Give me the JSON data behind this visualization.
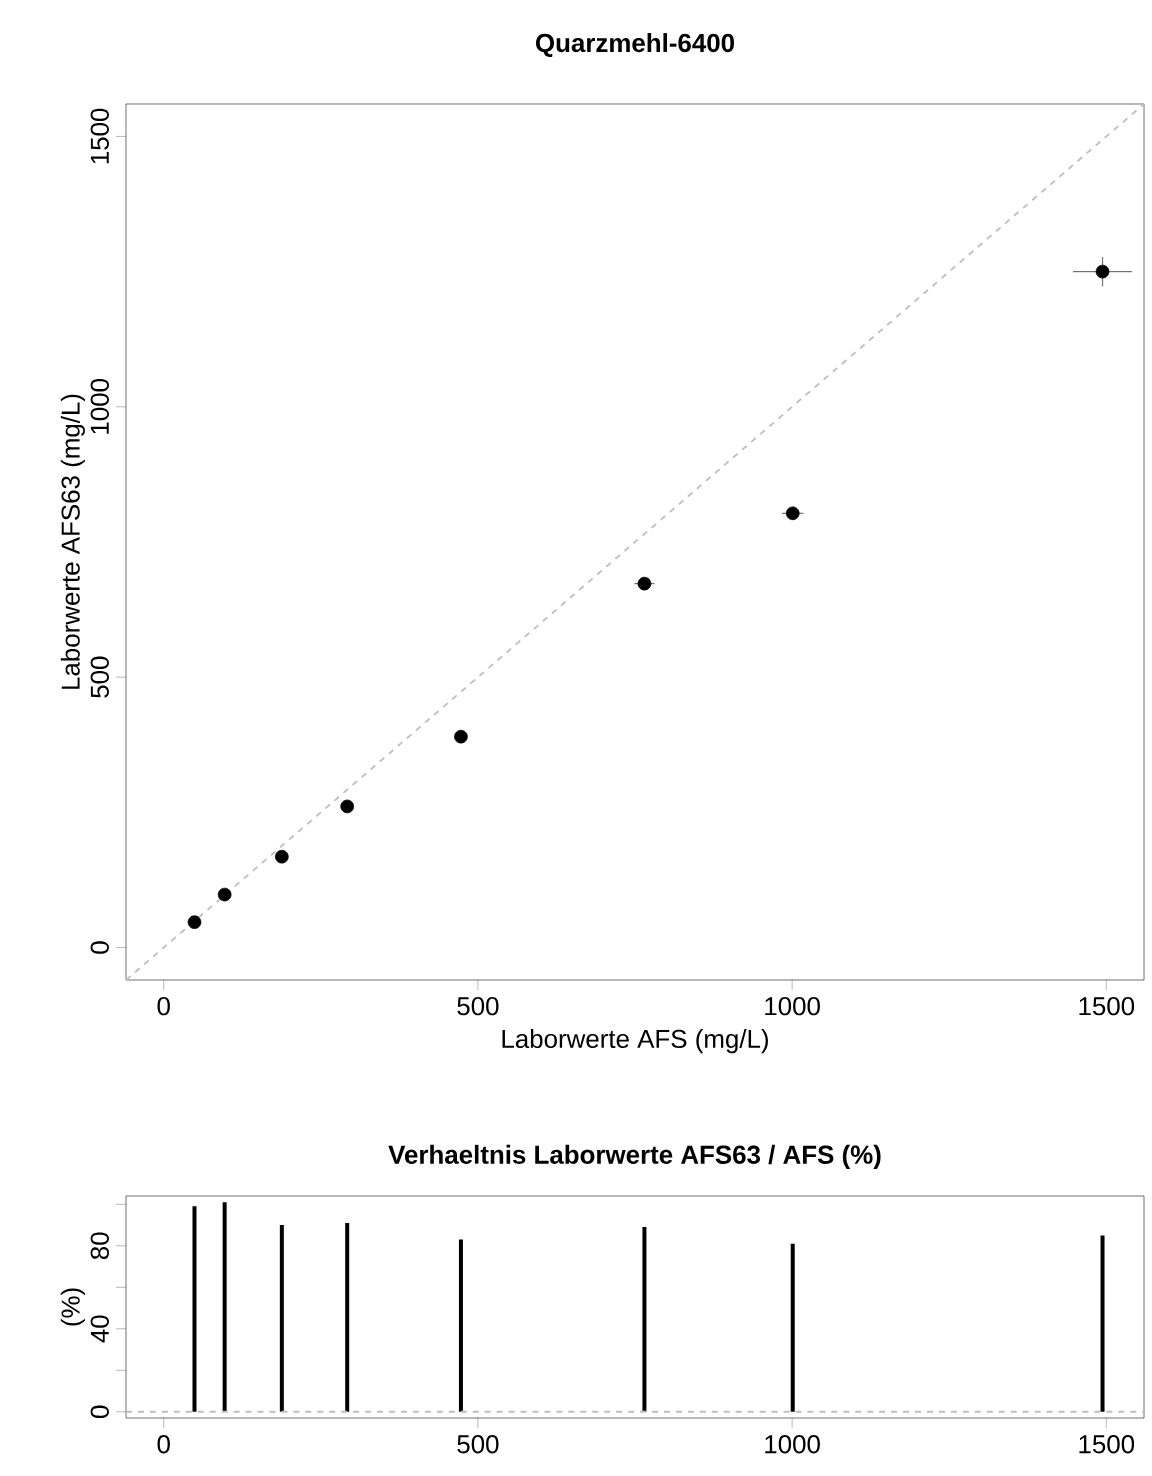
{
  "chart_data": [
    {
      "type": "scatter",
      "title": "Quarzmehl-6400",
      "xlabel": "Laborwerte AFS (mg/L)",
      "ylabel": "Laborwerte AFS63 (mg/L)",
      "xlim": [
        -60,
        1560
      ],
      "ylim": [
        -60,
        1560
      ],
      "xticks": [
        0,
        500,
        1000,
        1500
      ],
      "yticks": [
        0,
        500,
        1000,
        1500
      ],
      "series": [
        {
          "type": "scatter",
          "marker": "circle",
          "color": "#000000",
          "x": [
            49,
            97,
            188,
            292,
            473,
            765,
            1001,
            1494
          ],
          "values": [
            47,
            98,
            168,
            261,
            390,
            673,
            803,
            1250
          ],
          "errors": [
            null,
            null,
            null,
            8,
            8,
            12,
            12,
            27
          ],
          "xerrors": [
            null,
            null,
            null,
            8,
            8,
            16,
            17,
            47
          ]
        },
        {
          "type": "line",
          "color": "#bebebe",
          "line_style": "dashed",
          "x": [
            -60,
            1560
          ],
          "values": [
            -60,
            1560
          ]
        }
      ]
    },
    {
      "type": "bar",
      "title": "Verhaeltnis Laborwerte AFS63 / AFS (%)",
      "ylabel": "(%)",
      "xlim": [
        -60,
        1560
      ],
      "ylim": [
        -3,
        104
      ],
      "xticks": [
        0,
        500,
        1000,
        1500
      ],
      "yticks": [
        0,
        {
          "value": 20,
          "label": null
        },
        40,
        {
          "value": 60,
          "label": null
        },
        80,
        {
          "value": 100,
          "label": null
        }
      ],
      "color": "#000000",
      "x": [
        49,
        97,
        188,
        292,
        473,
        765,
        1001,
        1494
      ],
      "values": [
        99,
        101,
        90,
        91,
        83,
        89,
        81,
        85
      ],
      "ref_lines": [
        {
          "axis": "y",
          "value": 0,
          "color": "#bebebe",
          "line_style": "dashed"
        }
      ]
    }
  ]
}
